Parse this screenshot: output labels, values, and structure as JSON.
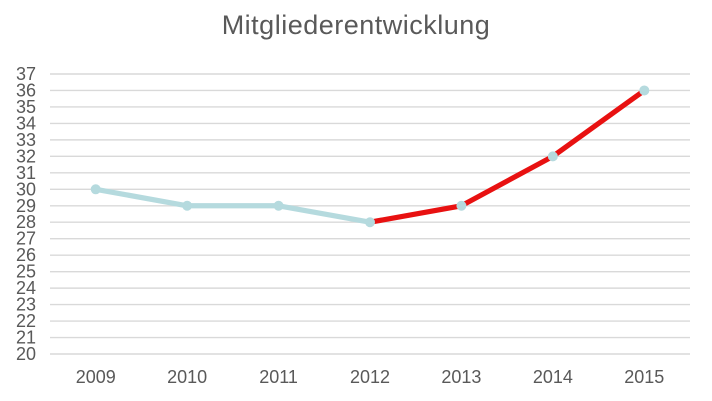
{
  "title": "Mitgliederentwicklung",
  "colors": {
    "background": "#ffffff",
    "grid": "#d9d9d9",
    "text": "#595959",
    "line_blue": "#b5dade",
    "line_red": "#e81111",
    "marker": "#b5dade"
  },
  "chart_data": {
    "type": "line",
    "title": "Mitgliederentwicklung",
    "categories": [
      "2009",
      "2010",
      "2011",
      "2012",
      "2013",
      "2014",
      "2015"
    ],
    "values": [
      30,
      29,
      29,
      28,
      29,
      32,
      36
    ],
    "segments": [
      {
        "name": "blue-segment",
        "from_index": 0,
        "to_index": 3,
        "color": "#b5dade"
      },
      {
        "name": "red-segment",
        "from_index": 3,
        "to_index": 6,
        "color": "#e81111"
      }
    ],
    "marker_color": "#b5dade",
    "xlabel": "",
    "ylabel": "",
    "ylim": [
      20,
      37
    ],
    "yticks": [
      "20",
      "21",
      "22",
      "23",
      "24",
      "25",
      "26",
      "27",
      "28",
      "29",
      "30",
      "31",
      "32",
      "33",
      "34",
      "35",
      "36",
      "37"
    ],
    "grid": true,
    "legend_position": "none"
  }
}
